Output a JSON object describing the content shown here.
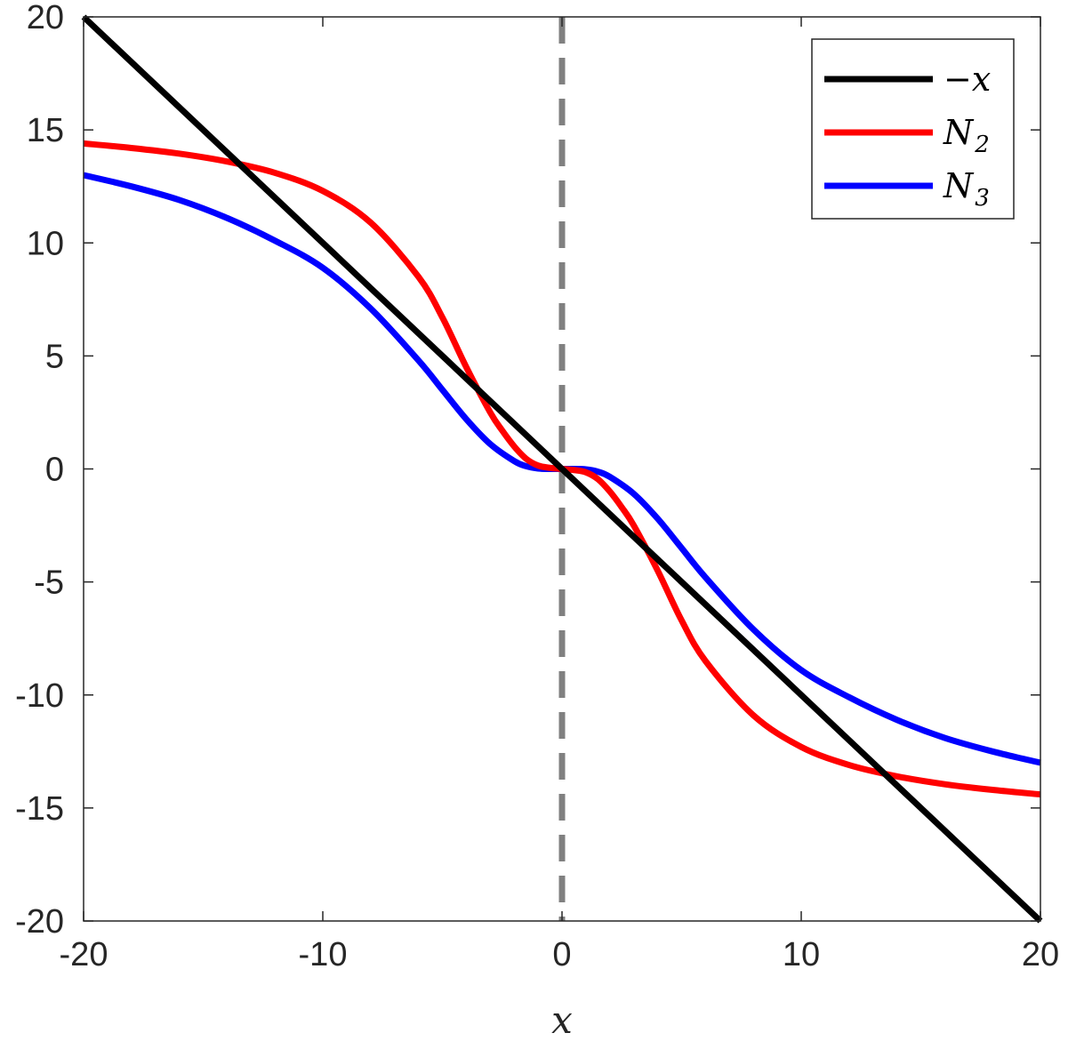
{
  "chart_data": {
    "type": "line",
    "title": "",
    "xlabel": "x",
    "ylabel": "",
    "xlim": [
      -20,
      20
    ],
    "ylim": [
      -20,
      20
    ],
    "xticks": [
      -20,
      -10,
      0,
      10,
      20
    ],
    "yticks": [
      -20,
      -15,
      -10,
      -5,
      0,
      5,
      10,
      15,
      20
    ],
    "xtick_labels": [
      "-20",
      "-10",
      "0",
      "10",
      "20"
    ],
    "ytick_labels": [
      "-20",
      "-15",
      "-10",
      "-5",
      "0",
      "5",
      "10",
      "15",
      "20"
    ],
    "grid": false,
    "legend_position": "top-right",
    "reference_line": {
      "x": 0,
      "style": "dashed",
      "color": "#808080"
    },
    "series": [
      {
        "name": "-x",
        "legend_main": "−x",
        "legend_sub": "",
        "color": "#000000",
        "x": [
          -20,
          20
        ],
        "y": [
          20,
          -20
        ]
      },
      {
        "name": "N2",
        "legend_main": "N",
        "legend_sub": "2",
        "color": "#ff0000",
        "x": [
          -20,
          -18,
          -16,
          -14,
          -12,
          -10,
          -8,
          -6,
          -5,
          -4,
          -3,
          -2.5,
          -2,
          -1.5,
          -1,
          -0.5,
          0,
          0.5,
          1,
          1.5,
          2,
          2.5,
          3,
          4,
          5,
          6,
          8,
          10,
          12,
          14,
          16,
          18,
          20
        ],
        "y": [
          14.4,
          14.2,
          13.95,
          13.6,
          13.1,
          12.3,
          10.9,
          8.5,
          6.7,
          4.5,
          2.5,
          1.7,
          1.0,
          0.45,
          0.15,
          0.05,
          0.0,
          -0.05,
          -0.15,
          -0.45,
          -1.0,
          -1.7,
          -2.5,
          -4.5,
          -6.7,
          -8.5,
          -10.9,
          -12.3,
          -13.1,
          -13.6,
          -13.95,
          -14.2,
          -14.4
        ]
      },
      {
        "name": "N3",
        "legend_main": "N",
        "legend_sub": "3",
        "color": "#0000ff",
        "x": [
          -20,
          -18,
          -16,
          -14,
          -12,
          -10,
          -8,
          -6,
          -5,
          -4,
          -3,
          -2,
          -1.5,
          -1,
          -0.5,
          0,
          0.5,
          1,
          1.5,
          2,
          3,
          4,
          5,
          6,
          8,
          10,
          12,
          14,
          16,
          18,
          20
        ],
        "y": [
          13.0,
          12.5,
          11.9,
          11.1,
          10.1,
          8.9,
          7.1,
          4.8,
          3.5,
          2.2,
          1.1,
          0.35,
          0.12,
          0.02,
          0.0,
          0.0,
          0.0,
          -0.02,
          -0.12,
          -0.35,
          -1.1,
          -2.2,
          -3.5,
          -4.8,
          -7.1,
          -8.9,
          -10.1,
          -11.1,
          -11.9,
          -12.5,
          -13.0
        ]
      }
    ]
  }
}
